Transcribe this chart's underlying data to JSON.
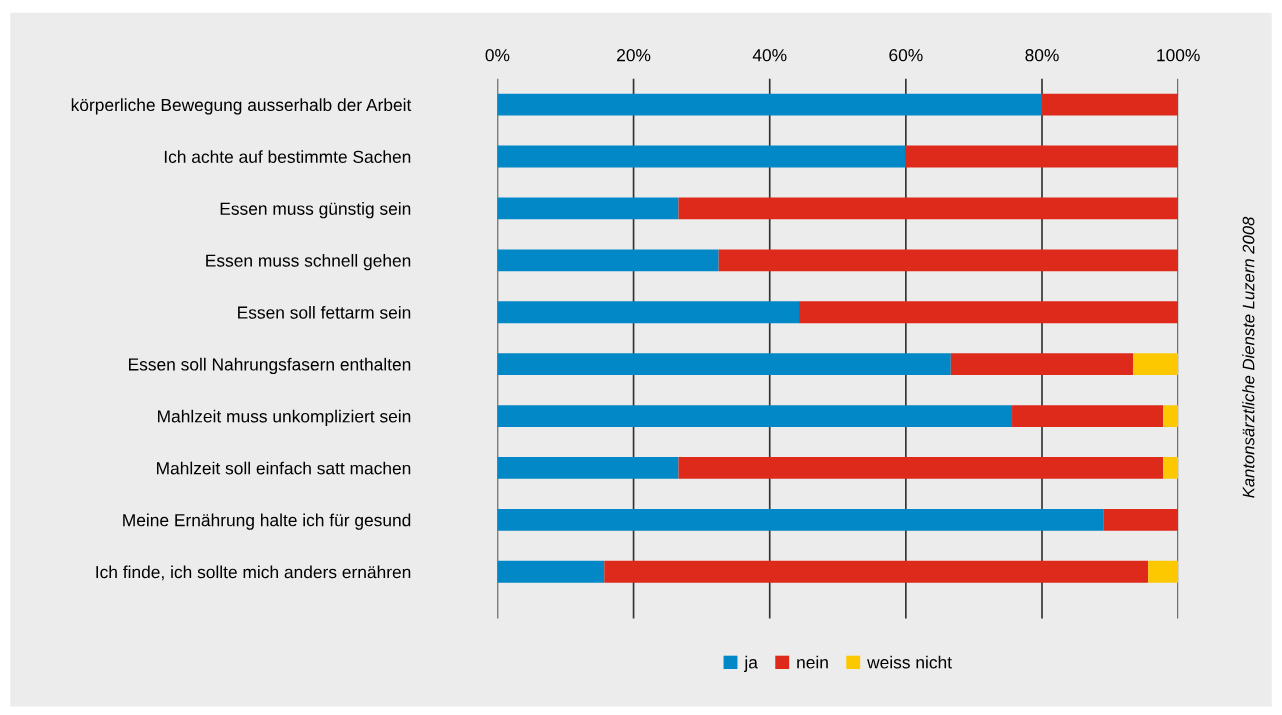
{
  "chart_data": {
    "type": "bar",
    "orientation": "horizontal",
    "stacked": true,
    "categories": [
      "körperliche Bewegung ausserhalb der Arbeit",
      "Ich achte auf bestimmte Sachen",
      "Essen muss günstig sein",
      "Essen muss schnell gehen",
      "Essen soll fettarm sein",
      "Essen soll Nahrungsfasern enthalten",
      "Mahlzeit muss unkompliziert sein",
      "Mahlzeit soll einfach satt machen",
      "Meine Ernährung halte ich für gesund",
      "Ich finde, ich sollte mich anders ernähren"
    ],
    "series": [
      {
        "name": "ja",
        "color": "#0288c6",
        "values": [
          80,
          60,
          26.6,
          32.5,
          44.3,
          66.6,
          75.6,
          26.6,
          89,
          15.7
        ]
      },
      {
        "name": "nein",
        "color": "#de2a1b",
        "values": [
          20,
          40,
          73.4,
          67.5,
          55.7,
          26.8,
          22.2,
          71.2,
          11,
          79.9
        ]
      },
      {
        "name": "weiss nicht",
        "color": "#fdc800",
        "values": [
          null,
          null,
          null,
          null,
          null,
          6.6,
          2.2,
          2.2,
          null,
          4.4
        ]
      }
    ],
    "xlim": [
      0,
      100
    ],
    "xticks": [
      {
        "value": 0,
        "label": "0%"
      },
      {
        "value": 20,
        "label": "20%"
      },
      {
        "value": 40,
        "label": "40%"
      },
      {
        "value": 60,
        "label": "60%"
      },
      {
        "value": 80,
        "label": "80%"
      },
      {
        "value": 100,
        "label": "100%"
      }
    ],
    "grid": "x",
    "legend": "bottom",
    "annotations": [
      "Kantonsärztliche Dienste Luzern 2008"
    ]
  }
}
